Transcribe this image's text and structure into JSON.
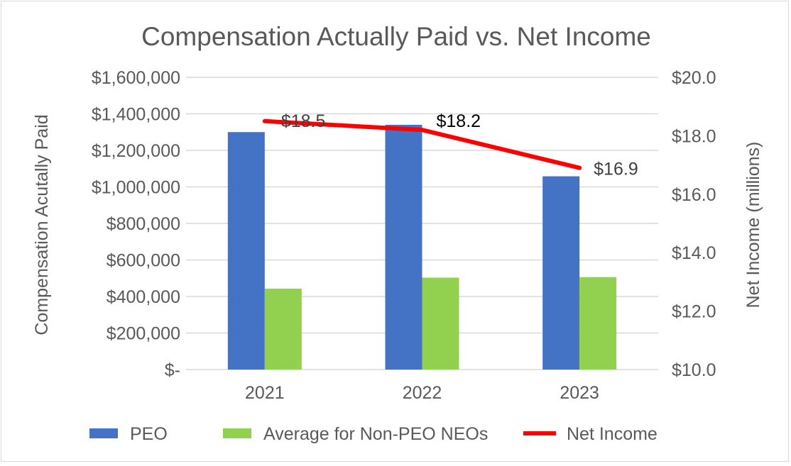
{
  "chart_data": {
    "type": "bar",
    "title": "Compensation Actually Paid vs. Net Income",
    "categories": [
      "2021",
      "2022",
      "2023"
    ],
    "ylabel": "Compensation Acutally Paid",
    "y2label": "Net Income (millions)",
    "ylim": [
      0,
      1600000
    ],
    "y2lim": [
      10.0,
      20.0
    ],
    "yticks": [
      "$-",
      "$200,000",
      "$400,000",
      "$600,000",
      "$800,000",
      "$1,000,000",
      "$1,200,000",
      "$1,400,000",
      "$1,600,000"
    ],
    "y2ticks": [
      "$10.0",
      "$12.0",
      "$14.0",
      "$16.0",
      "$18.0",
      "$20.0"
    ],
    "grid": true,
    "legend_position": "bottom",
    "series": [
      {
        "name": "PEO",
        "type": "bar",
        "axis": "left",
        "color": "#4472c4",
        "values": [
          1300000,
          1340000,
          1058000
        ]
      },
      {
        "name": "Average for Non-PEO NEOs",
        "type": "bar",
        "axis": "left",
        "color": "#92d050",
        "values": [
          443000,
          503000,
          506000
        ]
      },
      {
        "name": "Net Income",
        "type": "line",
        "axis": "right",
        "color": "#ff0000",
        "values": [
          18.5,
          18.2,
          16.9
        ],
        "labels": [
          "$18.5",
          "$18.2",
          "$16.9"
        ]
      }
    ]
  }
}
